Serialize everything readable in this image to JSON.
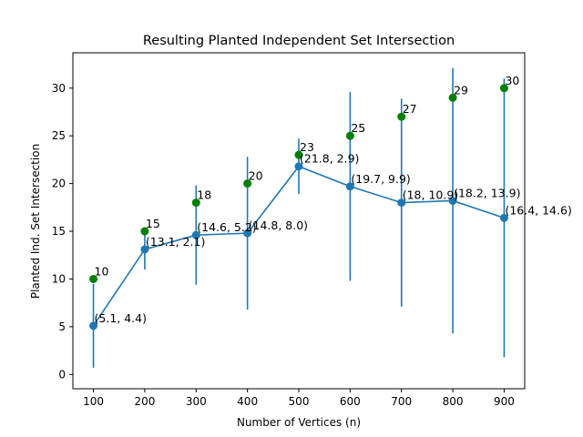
{
  "chart_data": {
    "type": "line",
    "title": "Resulting Planted Independent Set Intersection",
    "xlabel": "Number of Vertices (n)",
    "ylabel": "Planted Ind. Set Intersection",
    "xlim": [
      60,
      940
    ],
    "ylim": [
      -1.5,
      33.7
    ],
    "xticks": [
      100,
      200,
      300,
      400,
      500,
      600,
      700,
      800,
      900
    ],
    "yticks": [
      0,
      5,
      10,
      15,
      20,
      25,
      30
    ],
    "grid": false,
    "colors": {
      "mean": "#1f77b4",
      "planted": "#008000"
    },
    "series": [
      {
        "kind": "errorbar",
        "x": [
          100,
          200,
          300,
          400,
          500,
          600,
          700,
          800,
          900
        ],
        "y": [
          5.1,
          13.1,
          14.6,
          14.8,
          21.8,
          19.7,
          18,
          18.2,
          16.4
        ],
        "err": [
          4.4,
          2.1,
          5.2,
          8.0,
          2.9,
          9.9,
          10.9,
          13.9,
          14.6
        ],
        "labels": [
          "(5.1, 4.4)",
          "(13.1, 2.1)",
          "(14.6, 5.2)",
          "(14.8, 8.0)",
          "(21.8, 2.9)",
          "(19.7, 9.9)",
          "(18, 10.9)",
          "(18.2, 13.9)",
          "(16.4, 14.6)"
        ]
      },
      {
        "kind": "points",
        "x": [
          100,
          200,
          300,
          400,
          500,
          600,
          700,
          800,
          900
        ],
        "y": [
          10,
          15,
          18,
          20,
          23,
          25,
          27,
          29,
          30
        ],
        "labels": [
          "10",
          "15",
          "18",
          "20",
          "23",
          "25",
          "27",
          "29",
          "30"
        ]
      }
    ]
  }
}
